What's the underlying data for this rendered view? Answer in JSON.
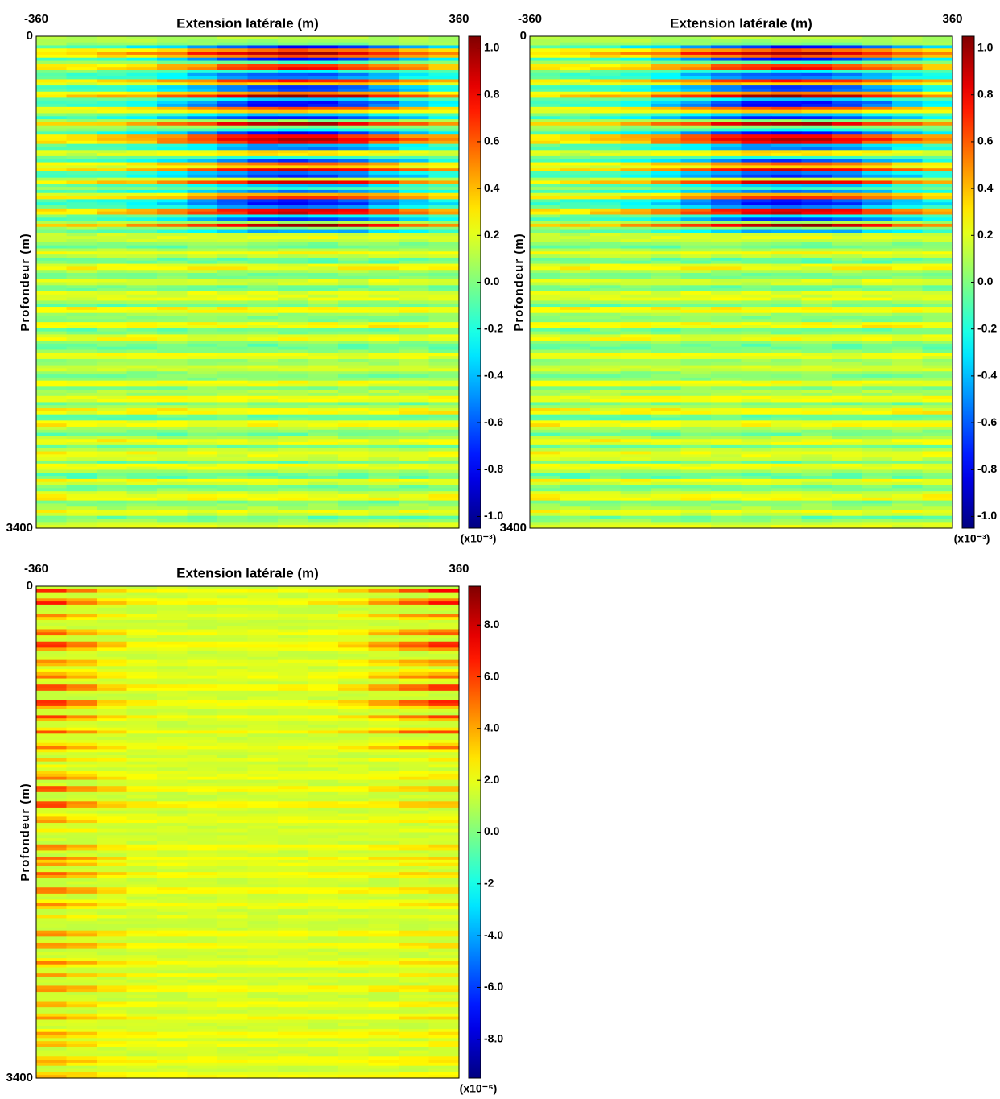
{
  "chart_data": [
    {
      "type": "heatmap",
      "xlabel": "Extension latérale (m)",
      "ylabel": "Profondeur (m)",
      "xlim": [
        -360,
        360
      ],
      "xticks": [
        -360,
        360
      ],
      "ylim": [
        0,
        3400
      ],
      "yticks": [
        0,
        3400
      ],
      "y_reversed": true,
      "colormap": "jet",
      "clim": [
        -1.05,
        1.05
      ],
      "cticks": [
        {
          "value": 1,
          "label": "1.0"
        },
        0.8,
        0.6,
        0.4,
        0.2,
        {
          "value": 0,
          "label": "0.0"
        },
        -0.2,
        -0.4,
        -0.6,
        -0.8,
        {
          "value": -1,
          "label": "-1.0"
        }
      ],
      "colorbar_unit": "(x10⁻³)"
    },
    {
      "type": "heatmap",
      "xlabel": "Extension latérale (m)",
      "ylabel": "Profondeur (m)",
      "xlim": [
        -360,
        360
      ],
      "xticks": [
        -360,
        360
      ],
      "ylim": [
        0,
        3400
      ],
      "yticks": [
        0,
        3400
      ],
      "y_reversed": true,
      "colormap": "jet",
      "clim": [
        -1.05,
        1.05
      ],
      "cticks": [
        {
          "value": 1,
          "label": "1.0"
        },
        0.8,
        0.6,
        0.4,
        0.2,
        {
          "value": 0,
          "label": "0.0"
        },
        -0.2,
        -0.4,
        -0.6,
        -0.8,
        {
          "value": -1,
          "label": "-1.0"
        }
      ],
      "colorbar_unit": "(x10⁻³)"
    },
    {
      "type": "heatmap",
      "xlabel": "Extension latérale (m)",
      "ylabel": "Profondeur (m)",
      "xlim": [
        -360,
        360
      ],
      "xticks": [
        -360,
        360
      ],
      "ylim": [
        0,
        3400
      ],
      "yticks": [
        0,
        3400
      ],
      "y_reversed": true,
      "colormap": "jet",
      "clim": [
        -9.5,
        9.5
      ],
      "cticks": [
        {
          "value": 8,
          "label": "8.0"
        },
        {
          "value": 6,
          "label": "6.0"
        },
        {
          "value": 4,
          "label": "4.0"
        },
        {
          "value": 2,
          "label": "2.0"
        },
        {
          "value": 0,
          "label": "0.0"
        },
        -2,
        {
          "value": -4,
          "label": "-4.0"
        },
        {
          "value": -6,
          "label": "-6.0"
        },
        {
          "value": -8,
          "label": "-8.0"
        }
      ],
      "colorbar_unit": "(x10⁻⁵)"
    }
  ]
}
